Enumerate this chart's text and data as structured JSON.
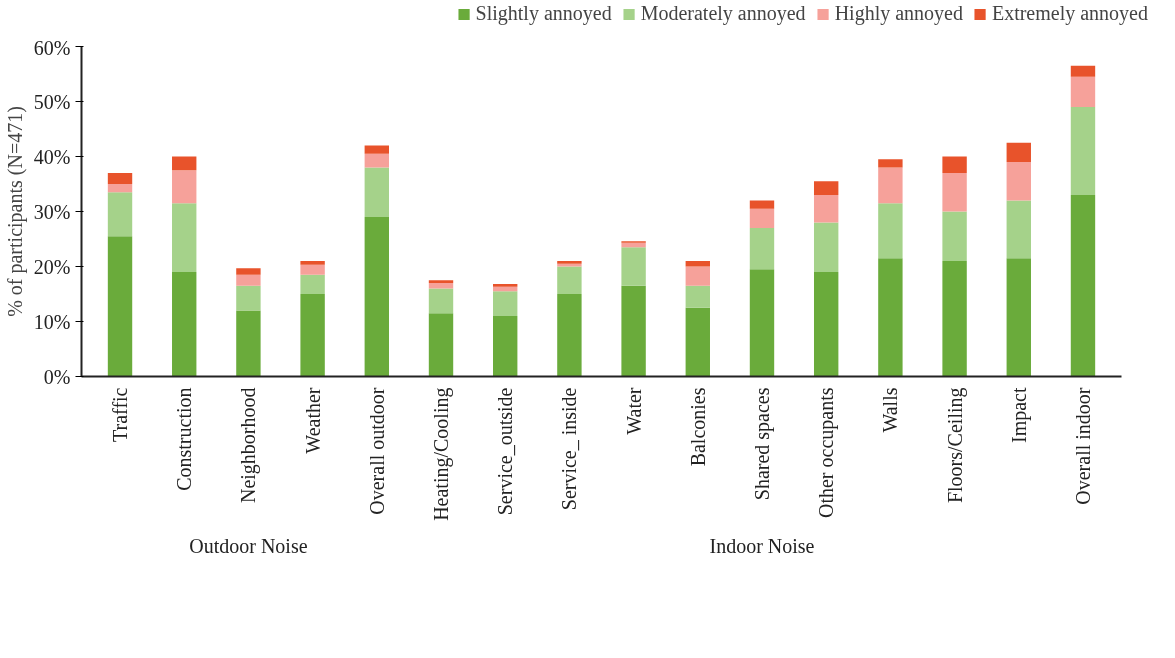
{
  "chart_data": {
    "type": "bar",
    "stacked": true,
    "ylabel": "% of participants (N=471)",
    "categories": [
      "Traffic",
      "Construction",
      "Neighborhood",
      "Weather",
      "Overall outdoor",
      "Heating/Cooling",
      "Service_outside",
      "Service_ inside",
      "Water",
      "Balconies",
      "Shared spaces",
      "Other occupants",
      "Walls",
      "Floors/Ceiling",
      "Impact",
      "Overall indoor"
    ],
    "series": [
      {
        "name": "Slightly annoyed",
        "color": "#6aab3b",
        "values": [
          25.5,
          19,
          12,
          15,
          29,
          11.5,
          11,
          15,
          16.5,
          12.5,
          19.5,
          19,
          21.5,
          21,
          21.5,
          33
        ]
      },
      {
        "name": "Moderately annoyed",
        "color": "#a5d28a",
        "values": [
          8,
          12.5,
          4.5,
          3.5,
          9,
          4.5,
          4.5,
          5,
          7,
          4,
          7.5,
          9,
          10,
          9,
          10.5,
          16
        ]
      },
      {
        "name": "Highly annoyed",
        "color": "#f6a19a",
        "values": [
          1.5,
          6,
          2,
          1.8,
          2.5,
          1,
          0.8,
          0.5,
          0.8,
          3.5,
          3.5,
          5,
          6.5,
          7,
          7,
          5.5
        ]
      },
      {
        "name": "Extremely annoyed",
        "color": "#e8532b",
        "values": [
          2,
          2.5,
          1.2,
          0.7,
          1.5,
          0.5,
          0.5,
          0.5,
          0.3,
          1,
          1.5,
          2.5,
          1.5,
          3,
          3.5,
          2
        ]
      }
    ],
    "ylim": [
      0,
      60
    ],
    "yticks": [
      {
        "value": 0,
        "label": "0%"
      },
      {
        "value": 10,
        "label": "10%"
      },
      {
        "value": 20,
        "label": "20%"
      },
      {
        "value": 30,
        "label": "30%"
      },
      {
        "value": 40,
        "label": "40%"
      },
      {
        "value": 50,
        "label": "50%"
      },
      {
        "value": 60,
        "label": "60%"
      }
    ],
    "annotations": [
      "Outdoor Noise",
      "Indoor Noise"
    ],
    "legend": "top",
    "grid": false
  }
}
